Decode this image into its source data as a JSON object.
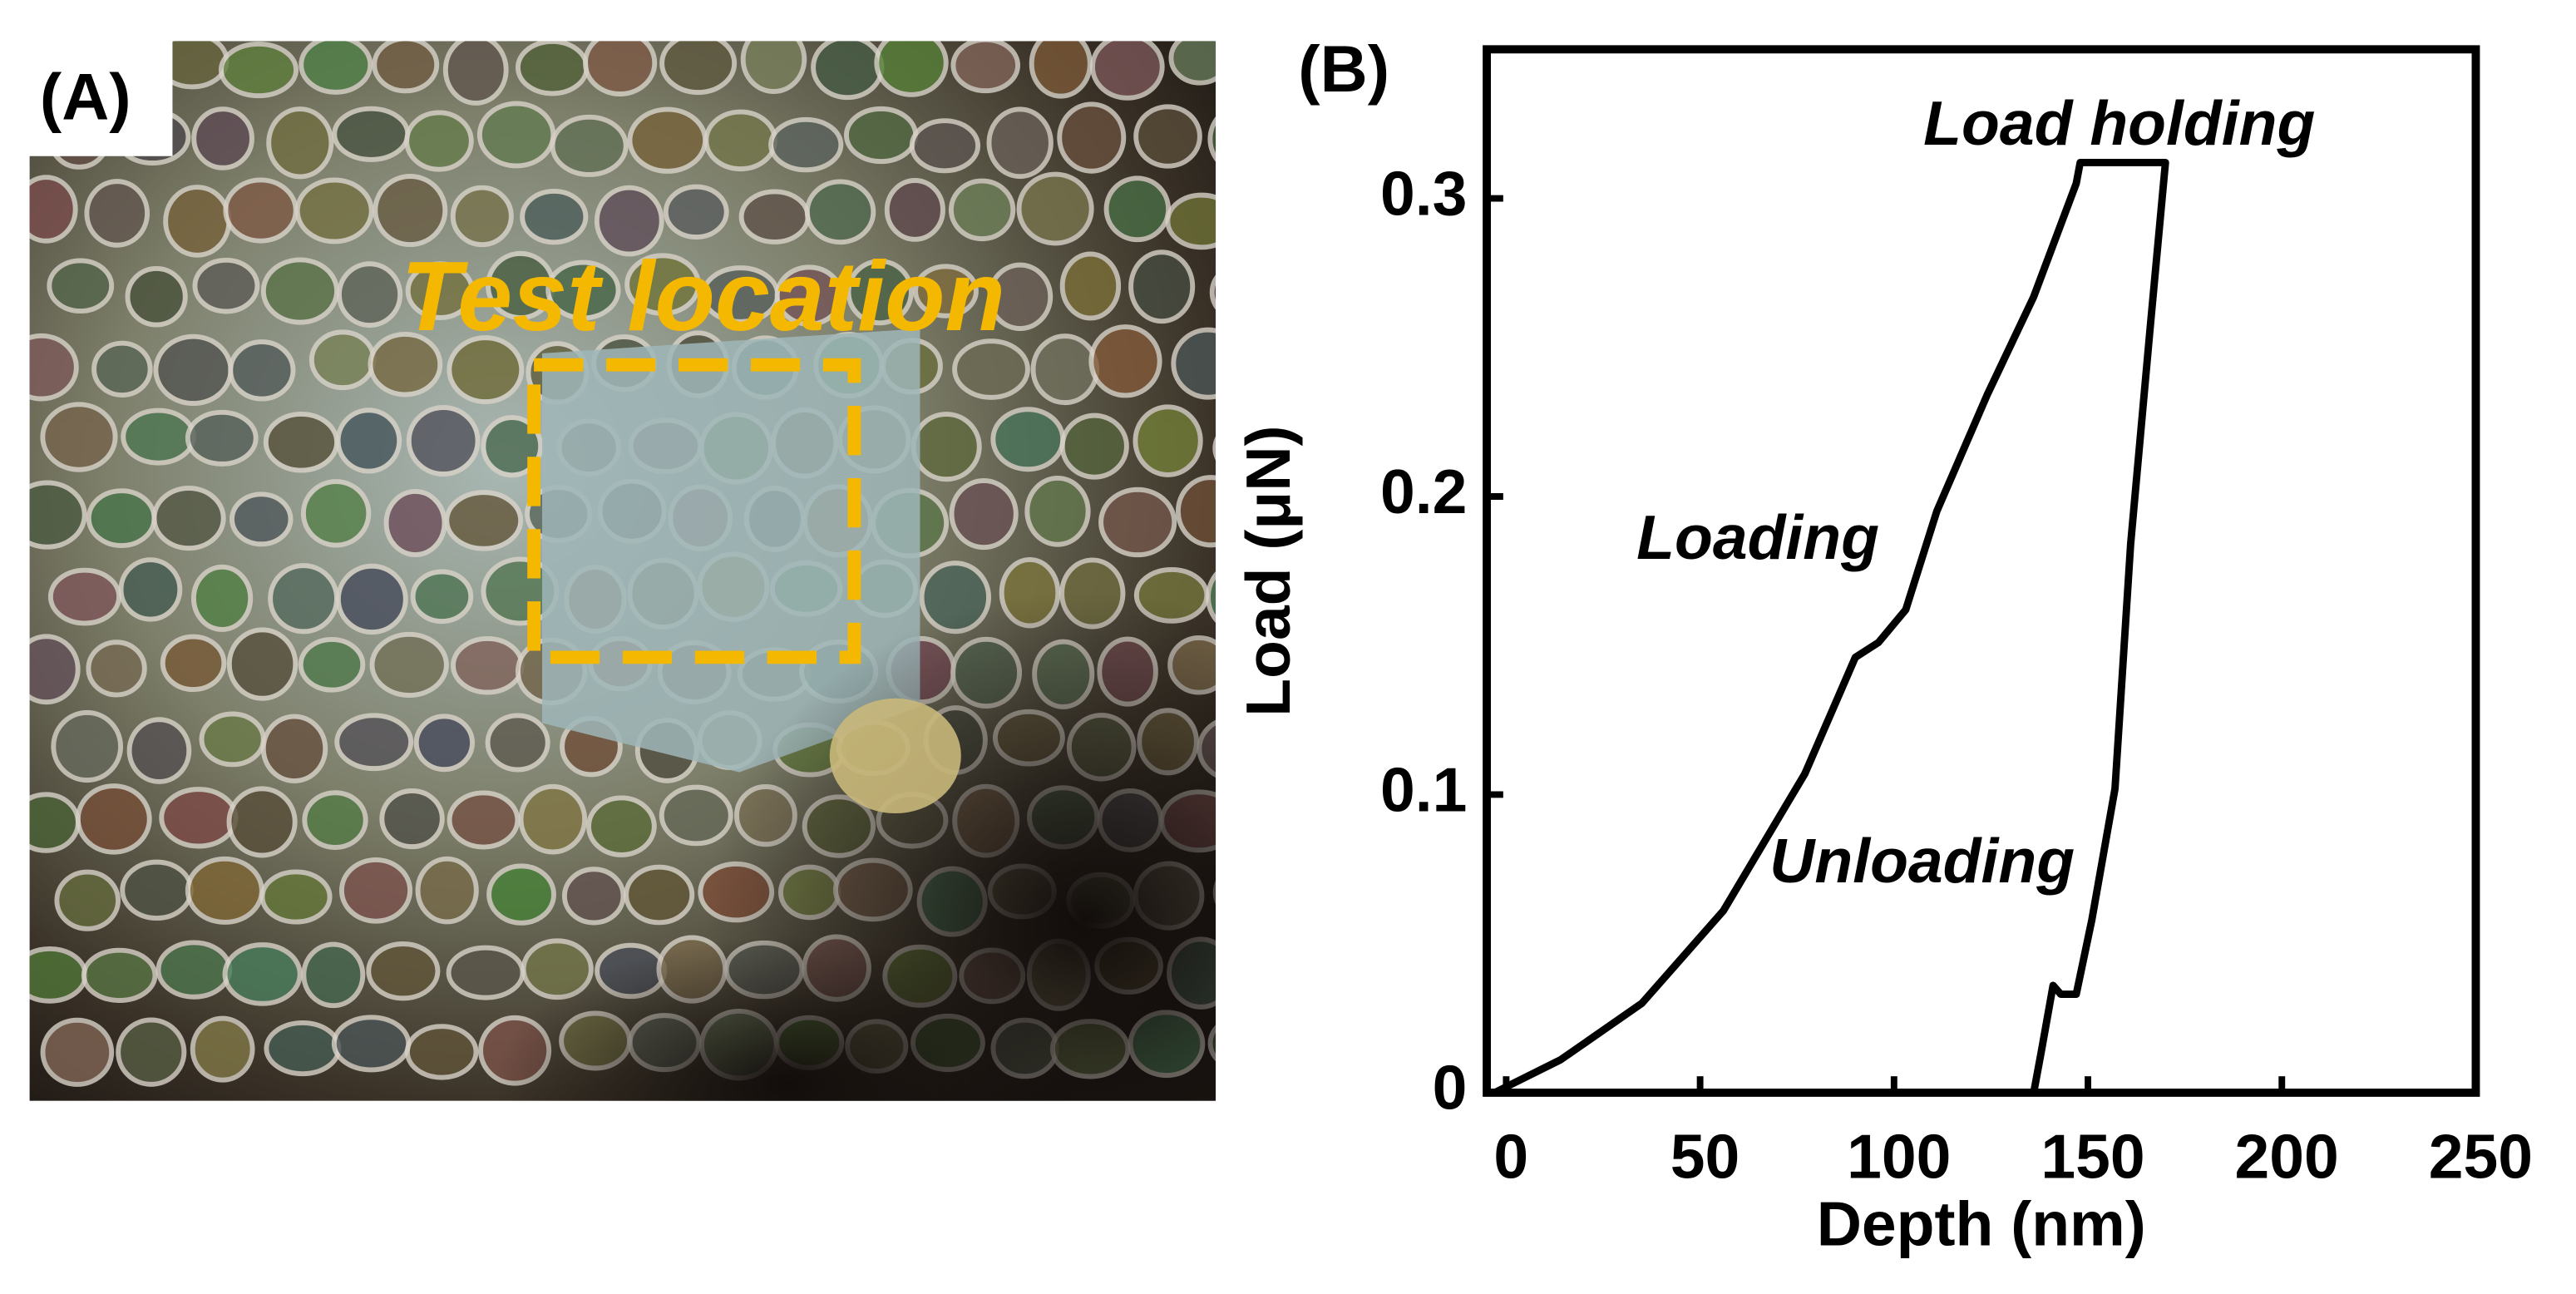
{
  "panel_a": {
    "label": "(A)",
    "annotation": "Test location"
  },
  "chart_data": {
    "type": "line",
    "panel_label": "(B)",
    "x_label": "Depth (nm)",
    "y_label": "Load (μN)",
    "xlim": [
      -5,
      250
    ],
    "ylim": [
      0,
      0.35
    ],
    "xticks": [
      0,
      50,
      100,
      150,
      200,
      250
    ],
    "yticks": [
      0,
      0.1,
      0.2,
      0.3
    ],
    "annotations": [
      "Load holding",
      "Loading",
      "Unloading"
    ],
    "series": [
      {
        "color": "#000000",
        "x": [
          -3,
          14,
          35,
          56,
          77,
          90,
          96,
          103,
          111,
          124,
          136,
          147,
          148,
          170,
          166,
          161,
          157,
          151,
          147,
          143,
          141,
          138,
          136
        ],
        "values": [
          0,
          0.011,
          0.03,
          0.061,
          0.107,
          0.146,
          0.151,
          0.162,
          0.195,
          0.234,
          0.267,
          0.305,
          0.312,
          0.312,
          0.256,
          0.184,
          0.102,
          0.058,
          0.033,
          0.033,
          0.036,
          0.014,
          0
        ]
      }
    ]
  }
}
